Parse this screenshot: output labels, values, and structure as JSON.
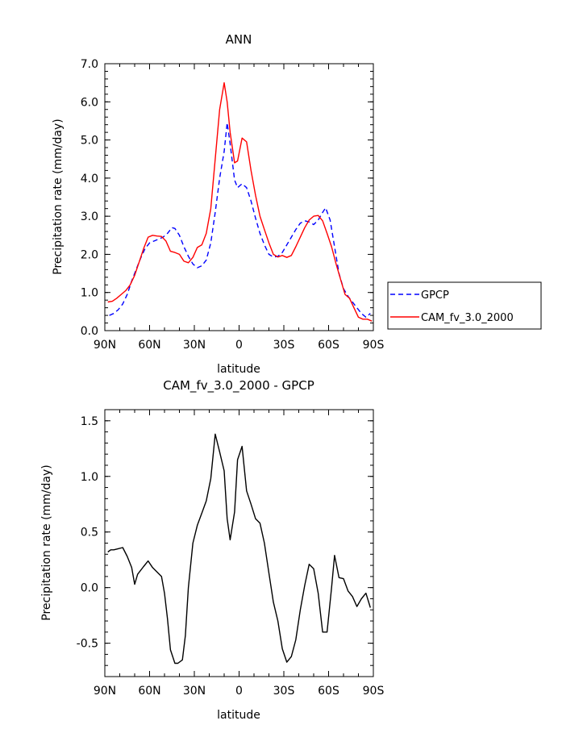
{
  "chart_data": [
    {
      "type": "line",
      "title": "ANN",
      "xlabel": "latitude",
      "ylabel": "Precipitation rate (mm/day)",
      "xlim": [
        90,
        -90
      ],
      "ylim": [
        0,
        7
      ],
      "x_ticks": [
        {
          "value": 90,
          "label": "90N"
        },
        {
          "value": 60,
          "label": "60N"
        },
        {
          "value": 30,
          "label": "30N"
        },
        {
          "value": 0,
          "label": "0"
        },
        {
          "value": -30,
          "label": "30S"
        },
        {
          "value": -60,
          "label": "60S"
        },
        {
          "value": -90,
          "label": "90S"
        }
      ],
      "y_ticks": [
        {
          "value": 0,
          "label": "0.0"
        },
        {
          "value": 1,
          "label": "1.0"
        },
        {
          "value": 2,
          "label": "2.0"
        },
        {
          "value": 3,
          "label": "3.0"
        },
        {
          "value": 4,
          "label": "4.0"
        },
        {
          "value": 5,
          "label": "5.0"
        },
        {
          "value": 6,
          "label": "6.0"
        },
        {
          "value": 7,
          "label": "7.0"
        }
      ],
      "legend": {
        "placement": "right"
      },
      "series": [
        {
          "name": "GPCP",
          "color": "#0000ff",
          "dash": "dashed",
          "points": [
            [
              87,
              0.4
            ],
            [
              84,
              0.45
            ],
            [
              81,
              0.55
            ],
            [
              78,
              0.7
            ],
            [
              75,
              0.95
            ],
            [
              72,
              1.3
            ],
            [
              69,
              1.6
            ],
            [
              66,
              1.9
            ],
            [
              63,
              2.15
            ],
            [
              60,
              2.3
            ],
            [
              57,
              2.35
            ],
            [
              54,
              2.4
            ],
            [
              51,
              2.45
            ],
            [
              48,
              2.55
            ],
            [
              45,
              2.7
            ],
            [
              43,
              2.68
            ],
            [
              40,
              2.5
            ],
            [
              37,
              2.2
            ],
            [
              34,
              1.95
            ],
            [
              31,
              1.75
            ],
            [
              28,
              1.65
            ],
            [
              25,
              1.7
            ],
            [
              22,
              1.85
            ],
            [
              19,
              2.3
            ],
            [
              16,
              3.1
            ],
            [
              13,
              4.0
            ],
            [
              10,
              4.7
            ],
            [
              8,
              5.45
            ],
            [
              6,
              4.9
            ],
            [
              3,
              3.95
            ],
            [
              1,
              3.75
            ],
            [
              -2,
              3.85
            ],
            [
              -5,
              3.75
            ],
            [
              -8,
              3.4
            ],
            [
              -11,
              2.95
            ],
            [
              -14,
              2.55
            ],
            [
              -17,
              2.25
            ],
            [
              -20,
              2.0
            ],
            [
              -23,
              1.93
            ],
            [
              -26,
              1.95
            ],
            [
              -29,
              2.05
            ],
            [
              -32,
              2.25
            ],
            [
              -35,
              2.45
            ],
            [
              -38,
              2.65
            ],
            [
              -41,
              2.82
            ],
            [
              -44,
              2.88
            ],
            [
              -47,
              2.85
            ],
            [
              -50,
              2.78
            ],
            [
              -53,
              2.9
            ],
            [
              -56,
              3.1
            ],
            [
              -58,
              3.22
            ],
            [
              -61,
              2.9
            ],
            [
              -64,
              2.2
            ],
            [
              -67,
              1.5
            ],
            [
              -70,
              1.1
            ],
            [
              -73,
              0.9
            ],
            [
              -76,
              0.75
            ],
            [
              -79,
              0.6
            ],
            [
              -82,
              0.45
            ],
            [
              -85,
              0.35
            ],
            [
              -88,
              0.45
            ]
          ]
        },
        {
          "name": "CAM_fv_3.0_2000",
          "color": "#ff0000",
          "dash": "solid",
          "points": [
            [
              88,
              0.75
            ],
            [
              85,
              0.77
            ],
            [
              82,
              0.85
            ],
            [
              79,
              0.95
            ],
            [
              76,
              1.05
            ],
            [
              73,
              1.2
            ],
            [
              70,
              1.45
            ],
            [
              67,
              1.8
            ],
            [
              64,
              2.15
            ],
            [
              61,
              2.45
            ],
            [
              58,
              2.5
            ],
            [
              55,
              2.48
            ],
            [
              52,
              2.47
            ],
            [
              49,
              2.35
            ],
            [
              46,
              2.08
            ],
            [
              43,
              2.05
            ],
            [
              40,
              2.0
            ],
            [
              37,
              1.82
            ],
            [
              34,
              1.78
            ],
            [
              31,
              1.92
            ],
            [
              28,
              2.18
            ],
            [
              25,
              2.25
            ],
            [
              22,
              2.55
            ],
            [
              19,
              3.2
            ],
            [
              16,
              4.5
            ],
            [
              13,
              5.8
            ],
            [
              10,
              6.5
            ],
            [
              8,
              6.0
            ],
            [
              6,
              5.2
            ],
            [
              3,
              4.4
            ],
            [
              1,
              4.45
            ],
            [
              -2,
              5.05
            ],
            [
              -5,
              4.95
            ],
            [
              -8,
              4.2
            ],
            [
              -11,
              3.55
            ],
            [
              -14,
              3.0
            ],
            [
              -17,
              2.65
            ],
            [
              -20,
              2.3
            ],
            [
              -23,
              2.0
            ],
            [
              -26,
              1.93
            ],
            [
              -29,
              1.97
            ],
            [
              -32,
              1.92
            ],
            [
              -35,
              1.97
            ],
            [
              -38,
              2.2
            ],
            [
              -41,
              2.45
            ],
            [
              -44,
              2.7
            ],
            [
              -47,
              2.9
            ],
            [
              -50,
              3.0
            ],
            [
              -53,
              3.02
            ],
            [
              -56,
              2.88
            ],
            [
              -59,
              2.55
            ],
            [
              -62,
              2.2
            ],
            [
              -65,
              1.75
            ],
            [
              -68,
              1.35
            ],
            [
              -71,
              0.95
            ],
            [
              -74,
              0.85
            ],
            [
              -77,
              0.6
            ],
            [
              -80,
              0.35
            ],
            [
              -83,
              0.3
            ],
            [
              -86,
              0.3
            ],
            [
              -89,
              0.25
            ]
          ]
        }
      ]
    },
    {
      "type": "line",
      "title": "CAM_fv_3.0_2000 - GPCP",
      "xlabel": "latitude",
      "ylabel": "Precipitation rate (mm/day)",
      "xlim": [
        90,
        -90
      ],
      "ylim": [
        -0.8,
        1.6
      ],
      "x_ticks": [
        {
          "value": 90,
          "label": "90N"
        },
        {
          "value": 60,
          "label": "60N"
        },
        {
          "value": 30,
          "label": "30N"
        },
        {
          "value": 0,
          "label": "0"
        },
        {
          "value": -30,
          "label": "30S"
        },
        {
          "value": -60,
          "label": "60S"
        },
        {
          "value": -90,
          "label": "90S"
        }
      ],
      "y_ticks": [
        {
          "value": -0.5,
          "label": "-0.5"
        },
        {
          "value": 0,
          "label": "0.0"
        },
        {
          "value": 0.5,
          "label": "0.5"
        },
        {
          "value": 1,
          "label": "1.0"
        },
        {
          "value": 1.5,
          "label": "1.5"
        }
      ],
      "series": [
        {
          "color": "#000000",
          "dash": "solid",
          "points": [
            [
              88,
              0.32
            ],
            [
              86,
              0.34
            ],
            [
              84,
              0.34
            ],
            [
              81,
              0.35
            ],
            [
              78,
              0.36
            ],
            [
              75,
              0.28
            ],
            [
              72,
              0.18
            ],
            [
              70,
              0.03
            ],
            [
              68,
              0.12
            ],
            [
              64,
              0.19
            ],
            [
              61,
              0.24
            ],
            [
              58,
              0.18
            ],
            [
              55,
              0.14
            ],
            [
              52,
              0.1
            ],
            [
              50,
              -0.05
            ],
            [
              48,
              -0.28
            ],
            [
              46,
              -0.56
            ],
            [
              43,
              -0.68
            ],
            [
              41,
              -0.68
            ],
            [
              38,
              -0.65
            ],
            [
              36,
              -0.43
            ],
            [
              34,
              0.0
            ],
            [
              31,
              0.4
            ],
            [
              28,
              0.56
            ],
            [
              25,
              0.67
            ],
            [
              22,
              0.78
            ],
            [
              19,
              0.98
            ],
            [
              16,
              1.38
            ],
            [
              13,
              1.22
            ],
            [
              10,
              1.05
            ],
            [
              8,
              0.62
            ],
            [
              6,
              0.43
            ],
            [
              3,
              0.68
            ],
            [
              1,
              1.15
            ],
            [
              -2,
              1.27
            ],
            [
              -5,
              0.87
            ],
            [
              -8,
              0.75
            ],
            [
              -11,
              0.62
            ],
            [
              -14,
              0.58
            ],
            [
              -17,
              0.4
            ],
            [
              -20,
              0.13
            ],
            [
              -23,
              -0.13
            ],
            [
              -26,
              -0.3
            ],
            [
              -29,
              -0.55
            ],
            [
              -32,
              -0.67
            ],
            [
              -35,
              -0.62
            ],
            [
              -38,
              -0.47
            ],
            [
              -41,
              -0.2
            ],
            [
              -44,
              0.02
            ],
            [
              -47,
              0.21
            ],
            [
              -50,
              0.17
            ],
            [
              -53,
              -0.05
            ],
            [
              -56,
              -0.4
            ],
            [
              -59,
              -0.4
            ],
            [
              -62,
              0.0
            ],
            [
              -64,
              0.29
            ],
            [
              -67,
              0.09
            ],
            [
              -70,
              0.08
            ],
            [
              -73,
              -0.03
            ],
            [
              -76,
              -0.08
            ],
            [
              -79,
              -0.17
            ],
            [
              -82,
              -0.1
            ],
            [
              -85,
              -0.05
            ],
            [
              -88,
              -0.18
            ]
          ]
        }
      ]
    }
  ]
}
